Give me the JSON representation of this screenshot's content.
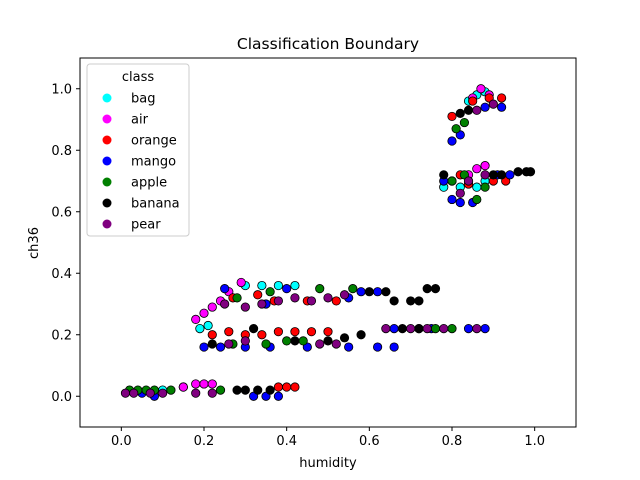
{
  "chart_data": {
    "type": "scatter",
    "title": "Classification Boundary",
    "xlabel": "humidity",
    "ylabel": "ch36",
    "xlim": [
      -0.1,
      1.1
    ],
    "ylim": [
      -0.1,
      1.1
    ],
    "xticks": [
      "0.0",
      "0.2",
      "0.4",
      "0.6",
      "0.8",
      "1.0"
    ],
    "xtick_values": [
      0.0,
      0.2,
      0.4,
      0.6,
      0.8,
      1.0
    ],
    "yticks": [
      "0.0",
      "0.2",
      "0.4",
      "0.6",
      "0.8",
      "1.0"
    ],
    "ytick_values": [
      0.0,
      0.2,
      0.4,
      0.6,
      0.8,
      1.0
    ],
    "grid": false,
    "legend": {
      "title": "class",
      "placement": "top-left"
    },
    "marker_edge_color": "#000000",
    "series": [
      {
        "name": "bag",
        "color": "#00ffff",
        "points": [
          [
            0.1,
            0.02
          ],
          [
            0.15,
            0.03
          ],
          [
            0.19,
            0.22
          ],
          [
            0.21,
            0.23
          ],
          [
            0.3,
            0.36
          ],
          [
            0.34,
            0.36
          ],
          [
            0.38,
            0.36
          ],
          [
            0.42,
            0.36
          ],
          [
            0.78,
            0.68
          ],
          [
            0.8,
            0.7
          ],
          [
            0.82,
            0.68
          ],
          [
            0.84,
            0.7
          ],
          [
            0.86,
            0.68
          ],
          [
            0.88,
            0.7
          ],
          [
            0.86,
            0.98
          ],
          [
            0.88,
            0.99
          ],
          [
            0.84,
            0.96
          ]
        ]
      },
      {
        "name": "air",
        "color": "#ff00ff",
        "points": [
          [
            0.15,
            0.03
          ],
          [
            0.18,
            0.04
          ],
          [
            0.2,
            0.04
          ],
          [
            0.22,
            0.04
          ],
          [
            0.18,
            0.25
          ],
          [
            0.2,
            0.27
          ],
          [
            0.22,
            0.29
          ],
          [
            0.24,
            0.31
          ],
          [
            0.26,
            0.34
          ],
          [
            0.29,
            0.37
          ],
          [
            0.86,
            0.74
          ],
          [
            0.88,
            0.75
          ],
          [
            0.84,
            0.72
          ],
          [
            0.87,
            1.0
          ],
          [
            0.89,
            0.98
          ],
          [
            0.85,
            0.97
          ]
        ]
      },
      {
        "name": "orange",
        "color": "#ff0000",
        "points": [
          [
            0.22,
            0.2
          ],
          [
            0.26,
            0.21
          ],
          [
            0.3,
            0.2
          ],
          [
            0.34,
            0.2
          ],
          [
            0.38,
            0.21
          ],
          [
            0.42,
            0.21
          ],
          [
            0.46,
            0.21
          ],
          [
            0.5,
            0.21
          ],
          [
            0.27,
            0.32
          ],
          [
            0.33,
            0.33
          ],
          [
            0.37,
            0.31
          ],
          [
            0.45,
            0.31
          ],
          [
            0.52,
            0.31
          ],
          [
            0.38,
            0.03
          ],
          [
            0.4,
            0.03
          ],
          [
            0.42,
            0.03
          ],
          [
            0.8,
            0.91
          ],
          [
            0.85,
            0.96
          ],
          [
            0.89,
            0.97
          ],
          [
            0.92,
            0.97
          ],
          [
            0.84,
            0.69
          ],
          [
            0.9,
            0.7
          ],
          [
            0.93,
            0.7
          ],
          [
            0.82,
            0.72
          ]
        ]
      },
      {
        "name": "mango",
        "color": "#0000ff",
        "points": [
          [
            0.05,
            0.01
          ],
          [
            0.08,
            0.0
          ],
          [
            0.32,
            0.0
          ],
          [
            0.35,
            0.0
          ],
          [
            0.38,
            0.0
          ],
          [
            0.2,
            0.16
          ],
          [
            0.24,
            0.16
          ],
          [
            0.3,
            0.16
          ],
          [
            0.36,
            0.16
          ],
          [
            0.45,
            0.16
          ],
          [
            0.55,
            0.16
          ],
          [
            0.62,
            0.16
          ],
          [
            0.66,
            0.16
          ],
          [
            0.25,
            0.35
          ],
          [
            0.35,
            0.3
          ],
          [
            0.4,
            0.35
          ],
          [
            0.55,
            0.32
          ],
          [
            0.58,
            0.34
          ],
          [
            0.62,
            0.34
          ],
          [
            0.66,
            0.22
          ],
          [
            0.75,
            0.22
          ],
          [
            0.84,
            0.22
          ],
          [
            0.88,
            0.22
          ],
          [
            0.8,
            0.64
          ],
          [
            0.82,
            0.63
          ],
          [
            0.85,
            0.63
          ],
          [
            0.78,
            0.7
          ],
          [
            0.91,
            0.72
          ],
          [
            0.94,
            0.72
          ],
          [
            0.8,
            0.83
          ],
          [
            0.82,
            0.85
          ],
          [
            0.88,
            0.94
          ],
          [
            0.92,
            0.94
          ]
        ]
      },
      {
        "name": "apple",
        "color": "#008000",
        "points": [
          [
            0.02,
            0.02
          ],
          [
            0.04,
            0.02
          ],
          [
            0.06,
            0.02
          ],
          [
            0.08,
            0.02
          ],
          [
            0.12,
            0.02
          ],
          [
            0.24,
            0.02
          ],
          [
            0.27,
            0.17
          ],
          [
            0.35,
            0.17
          ],
          [
            0.4,
            0.18
          ],
          [
            0.44,
            0.18
          ],
          [
            0.28,
            0.32
          ],
          [
            0.36,
            0.34
          ],
          [
            0.48,
            0.35
          ],
          [
            0.56,
            0.35
          ],
          [
            0.72,
            0.22
          ],
          [
            0.8,
            0.22
          ],
          [
            0.76,
            0.22
          ],
          [
            0.81,
            0.87
          ],
          [
            0.83,
            0.89
          ],
          [
            0.8,
            0.7
          ],
          [
            0.86,
            0.64
          ],
          [
            0.88,
            0.68
          ],
          [
            0.83,
            0.72
          ]
        ]
      },
      {
        "name": "banana",
        "color": "#000000",
        "points": [
          [
            0.28,
            0.02
          ],
          [
            0.3,
            0.02
          ],
          [
            0.33,
            0.02
          ],
          [
            0.36,
            0.02
          ],
          [
            0.22,
            0.17
          ],
          [
            0.32,
            0.22
          ],
          [
            0.42,
            0.18
          ],
          [
            0.5,
            0.18
          ],
          [
            0.54,
            0.19
          ],
          [
            0.58,
            0.2
          ],
          [
            0.6,
            0.34
          ],
          [
            0.64,
            0.34
          ],
          [
            0.66,
            0.31
          ],
          [
            0.7,
            0.31
          ],
          [
            0.72,
            0.31
          ],
          [
            0.74,
            0.35
          ],
          [
            0.76,
            0.35
          ],
          [
            0.68,
            0.22
          ],
          [
            0.72,
            0.22
          ],
          [
            0.82,
            0.92
          ],
          [
            0.84,
            0.93
          ],
          [
            0.78,
            0.72
          ],
          [
            0.9,
            0.72
          ],
          [
            0.92,
            0.72
          ],
          [
            0.96,
            0.73
          ],
          [
            0.98,
            0.73
          ],
          [
            0.99,
            0.73
          ]
        ]
      },
      {
        "name": "pear",
        "color": "#800080",
        "points": [
          [
            0.01,
            0.01
          ],
          [
            0.03,
            0.01
          ],
          [
            0.07,
            0.01
          ],
          [
            0.1,
            0.01
          ],
          [
            0.18,
            0.01
          ],
          [
            0.22,
            0.01
          ],
          [
            0.25,
            0.3
          ],
          [
            0.3,
            0.29
          ],
          [
            0.34,
            0.3
          ],
          [
            0.38,
            0.31
          ],
          [
            0.42,
            0.32
          ],
          [
            0.46,
            0.31
          ],
          [
            0.5,
            0.32
          ],
          [
            0.54,
            0.33
          ],
          [
            0.26,
            0.17
          ],
          [
            0.3,
            0.18
          ],
          [
            0.48,
            0.17
          ],
          [
            0.52,
            0.17
          ],
          [
            0.64,
            0.22
          ],
          [
            0.7,
            0.22
          ],
          [
            0.74,
            0.22
          ],
          [
            0.78,
            0.22
          ],
          [
            0.86,
            0.22
          ],
          [
            0.84,
            0.7
          ],
          [
            0.82,
            0.66
          ],
          [
            0.88,
            0.72
          ],
          [
            0.86,
            0.93
          ],
          [
            0.9,
            0.95
          ]
        ]
      }
    ]
  }
}
